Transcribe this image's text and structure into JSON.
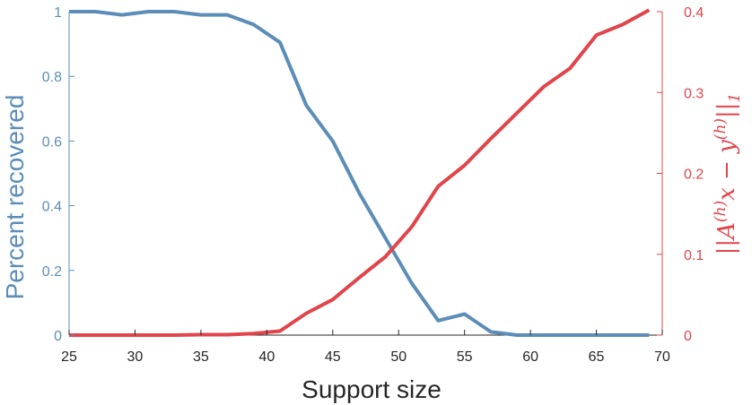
{
  "chart_data": {
    "type": "line",
    "xlabel": "Support size",
    "ylabel_left": "Percent recovered",
    "ylabel_right": "||A^(h)x − y^(h)||_1",
    "xlim": [
      25,
      70
    ],
    "ylim_left": [
      0,
      1
    ],
    "ylim_right": [
      0,
      0.4
    ],
    "x_ticks": [
      25,
      30,
      35,
      40,
      45,
      50,
      55,
      60,
      65,
      70
    ],
    "y_ticks_left": [
      0,
      0.2,
      0.4,
      0.6,
      0.8,
      1
    ],
    "y_ticks_right": [
      0,
      0.1,
      0.2,
      0.3,
      0.4
    ],
    "x": [
      25,
      27,
      29,
      31,
      33,
      35,
      37,
      39,
      41,
      43,
      45,
      47,
      49,
      51,
      53,
      55,
      57,
      59,
      61,
      63,
      65,
      67,
      69
    ],
    "series": [
      {
        "axis": "left",
        "color": "#5b8db8",
        "values": [
          1.0,
          1.0,
          0.99,
          1.0,
          1.0,
          0.99,
          0.99,
          0.96,
          0.905,
          0.71,
          0.6,
          0.44,
          0.3,
          0.16,
          0.045,
          0.065,
          0.01,
          0.0,
          0.0,
          0.0,
          0.0,
          0.0,
          0.0
        ]
      },
      {
        "axis": "right",
        "color": "#e0454b",
        "values": [
          0.0,
          0.0,
          0.0,
          0.0,
          0.0,
          0.0005,
          0.0005,
          0.002,
          0.005,
          0.027,
          0.044,
          0.071,
          0.097,
          0.134,
          0.184,
          0.21,
          0.243,
          0.275,
          0.307,
          0.33,
          0.371,
          0.384,
          0.402
        ]
      }
    ],
    "grid": false,
    "legend": "none"
  }
}
